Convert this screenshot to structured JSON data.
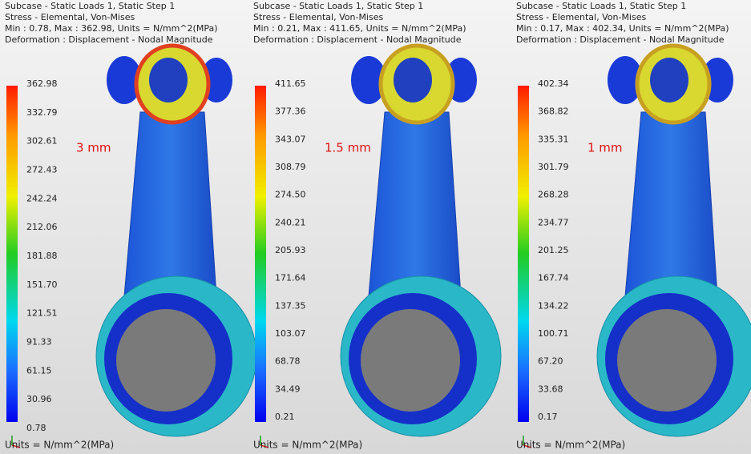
{
  "panels": [
    {
      "header": [
        "Subcase - Static Loads 1, Static Step 1",
        "Stress - Elemental, Von-Mises",
        "Min : 0.78, Max : 362.98, Units = N/mm^2(MPa)",
        "Deformation : Displacement - Nodal Magnitude"
      ],
      "legend": [
        "362.98",
        "332.79",
        "302.61",
        "272.43",
        "242.24",
        "212.06",
        "181.88",
        "151.70",
        "121.51",
        "91.33",
        "61.15",
        "30.96",
        "0.78"
      ],
      "mesh_label": "3 mm",
      "units": "Units = N/mm^2(MPa)"
    },
    {
      "header": [
        "Subcase - Static Loads 1, Static Step 1",
        "Stress - Elemental, Von-Mises",
        "Min : 0.21, Max : 411.65, Units = N/mm^2(MPa)",
        "Deformation : Displacement - Nodal Magnitude"
      ],
      "legend": [
        "411.65",
        "377.36",
        "343.07",
        "308.79",
        "274.50",
        "240.21",
        "205.93",
        "171.64",
        "137.35",
        "103.07",
        "68.78",
        "34.49",
        "0.21"
      ],
      "mesh_label": "1.5 mm",
      "units": "Units = N/mm^2(MPa)"
    },
    {
      "header": [
        "Subcase - Static Loads 1, Static Step 1",
        "Stress - Elemental, Von-Mises",
        "Min : 0.17, Max : 402.34, Units = N/mm^2(MPa)",
        "Deformation : Displacement - Nodal Magnitude"
      ],
      "legend": [
        "402.34",
        "368.82",
        "335.31",
        "301.79",
        "268.28",
        "234.77",
        "201.25",
        "167.74",
        "134.22",
        "100.71",
        "67.20",
        "33.68",
        "0.17"
      ],
      "mesh_label": "1 mm",
      "units": "Units = N/mm^2(MPa)"
    }
  ]
}
